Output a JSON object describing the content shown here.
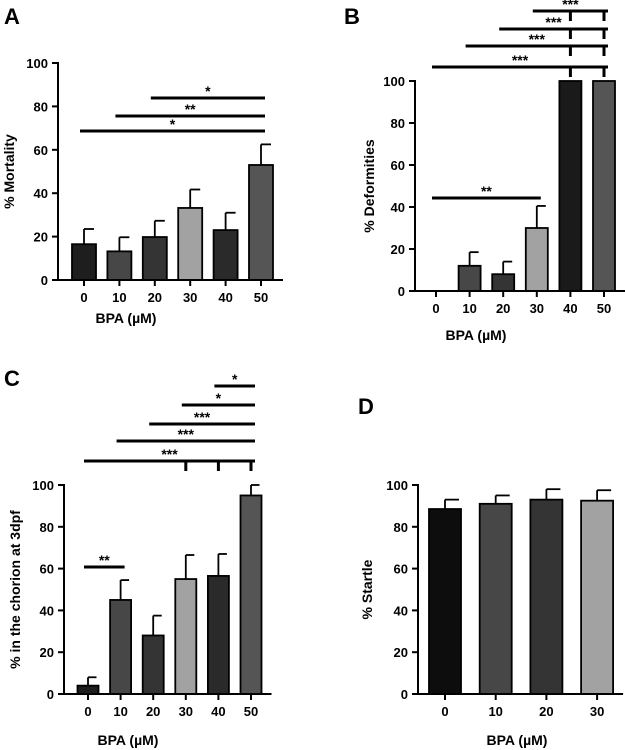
{
  "chart_data": [
    {
      "panel": "A",
      "type": "bar",
      "categories": [
        "0",
        "10",
        "20",
        "30",
        "40",
        "50"
      ],
      "values": [
        16.5,
        13.2,
        19.8,
        33.2,
        23.0,
        53.0
      ],
      "errors": [
        7.0,
        6.5,
        7.5,
        8.5,
        8.0,
        9.5
      ],
      "colors": [
        "#1e1e1e",
        "#474747",
        "#343434",
        "#a2a2a2",
        "#2a2a2a",
        "#555555"
      ],
      "xlabel": "BPA (µM)",
      "ylabel": "% Mortality",
      "ylim": [
        0,
        100
      ],
      "yticks": [
        "0",
        "20",
        "40",
        "60",
        "80",
        "100"
      ],
      "grid": false,
      "significance": [
        {
          "from": "0",
          "to": "50",
          "label": "*"
        },
        {
          "from": "10",
          "to": "50",
          "label": "**"
        },
        {
          "from": "20",
          "to": "50",
          "label": "*"
        }
      ]
    },
    {
      "panel": "B",
      "type": "bar",
      "categories": [
        "0",
        "10",
        "20",
        "30",
        "40",
        "50"
      ],
      "values": [
        0,
        12.0,
        8.0,
        30.0,
        100,
        100
      ],
      "errors": [
        0,
        6.5,
        6.0,
        10.5,
        0,
        0
      ],
      "colors": [
        "#1e1e1e",
        "#474747",
        "#343434",
        "#a2a2a2",
        "#1a1a1a",
        "#555555"
      ],
      "xlabel": "BPA (µM)",
      "ylabel": "% Deformities",
      "ylim": [
        0,
        100
      ],
      "yticks": [
        "0",
        "20",
        "40",
        "60",
        "80",
        "100"
      ],
      "grid": false,
      "significance": [
        {
          "from": "0",
          "to": "30",
          "label": "**"
        },
        {
          "from": "0",
          "to": [
            "40",
            "50"
          ],
          "label": "***"
        },
        {
          "from": "10",
          "to": [
            "40",
            "50"
          ],
          "label": "***"
        },
        {
          "from": "20",
          "to": [
            "40",
            "50"
          ],
          "label": "***"
        },
        {
          "from": "30",
          "to": [
            "40",
            "50"
          ],
          "label": "***"
        }
      ]
    },
    {
      "panel": "C",
      "type": "bar",
      "categories": [
        "0",
        "10",
        "20",
        "30",
        "40",
        "50"
      ],
      "values": [
        4.0,
        45.0,
        28.0,
        55.0,
        56.5,
        95.0
      ],
      "errors": [
        4.0,
        9.5,
        9.5,
        11.5,
        10.5,
        5.0
      ],
      "colors": [
        "#1e1e1e",
        "#474747",
        "#343434",
        "#a2a2a2",
        "#2a2a2a",
        "#555555"
      ],
      "xlabel": "BPA (µM)",
      "ylabel": "% in the chorion at 3dpf",
      "ylim": [
        0,
        100
      ],
      "yticks": [
        "0",
        "20",
        "40",
        "60",
        "80",
        "100"
      ],
      "grid": false,
      "significance": [
        {
          "from": "0",
          "to": "10",
          "label": "**"
        },
        {
          "from": "0",
          "to": [
            "30",
            "40",
            "50"
          ],
          "label": "***"
        },
        {
          "from": "10",
          "to": "50",
          "label": "***"
        },
        {
          "from": "20",
          "to": "50",
          "label": "***"
        },
        {
          "from": "30",
          "to": "50",
          "label": "*"
        },
        {
          "from": "40",
          "to": "50",
          "label": "*"
        }
      ]
    },
    {
      "panel": "D",
      "type": "bar",
      "categories": [
        "0",
        "10",
        "20",
        "30"
      ],
      "values": [
        88.5,
        91.0,
        93.0,
        92.5
      ],
      "errors": [
        4.5,
        4.0,
        5.0,
        5.0
      ],
      "colors": [
        "#0d0d0d",
        "#474747",
        "#343434",
        "#a2a2a2"
      ],
      "xlabel": "BPA (µM)",
      "ylabel": "% Startle",
      "ylim": [
        0,
        100
      ],
      "yticks": [
        "0",
        "20",
        "40",
        "60",
        "80",
        "100"
      ],
      "grid": false,
      "significance": []
    }
  ]
}
